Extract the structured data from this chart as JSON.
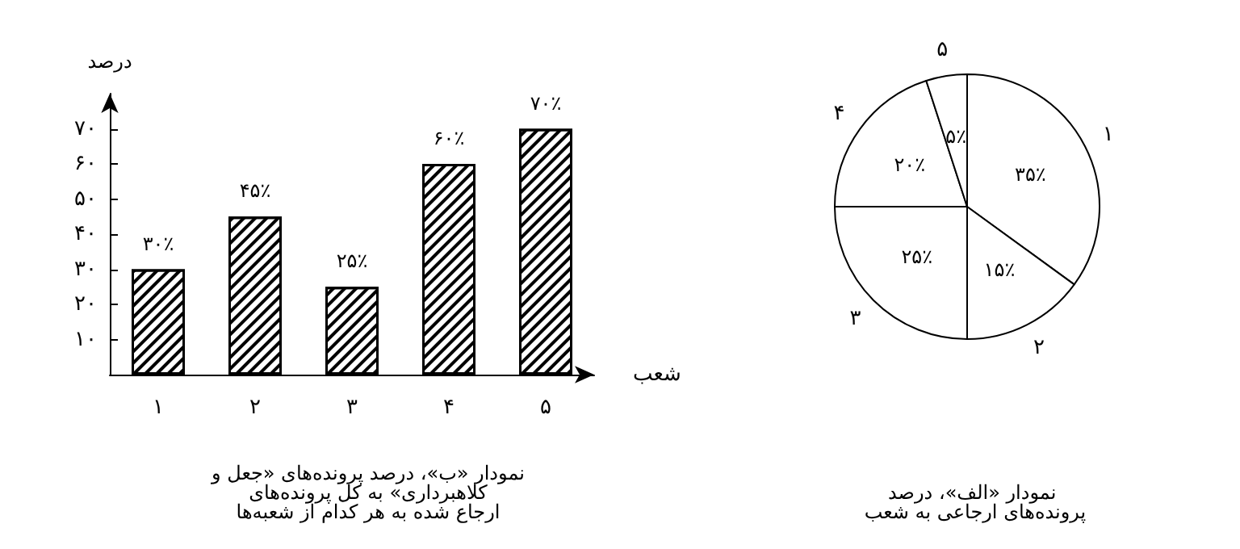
{
  "chart_data": [
    {
      "type": "pie",
      "title": "نمودار «الف»، درصد پرونده‌های ارجاعی به شعب",
      "categories": [
        "۱",
        "۲",
        "۳",
        "۴",
        "۵"
      ],
      "values": [
        35,
        15,
        25,
        20,
        5
      ],
      "colors": [
        "#ffffff",
        "#ffffff",
        "#ffffff",
        "#ffffff",
        "#ffffff"
      ],
      "value_labels": [
        "۳۵٪",
        "۱۵٪",
        "۲۵٪",
        "۲۰٪",
        "۵٪"
      ],
      "legend": false
    },
    {
      "type": "bar",
      "title": "نمودار «ب»، درصد پرونده‌های «جعل و کلاهبرداری» به کل پرونده‌های ارجاع شده به هر کدام از شعبه‌ها",
      "xlabel": "شعب",
      "ylabel": "درصد",
      "categories": [
        "۱",
        "۲",
        "۳",
        "۴",
        "۵"
      ],
      "values": [
        30,
        45,
        25,
        60,
        70
      ],
      "value_labels": [
        "۳۰٪",
        "۴۵٪",
        "۲۵٪",
        "۶۰٪",
        "۷۰٪"
      ],
      "color": "#ffffff",
      "ylim": [
        0,
        80
      ],
      "yticks": [
        {
          "value": 10,
          "label": "۱۰"
        },
        {
          "value": 20,
          "label": "۲۰"
        },
        {
          "value": 30,
          "label": "۳۰"
        },
        {
          "value": 40,
          "label": "۴۰"
        },
        {
          "value": 50,
          "label": "۵۰"
        },
        {
          "value": 60,
          "label": "۶۰"
        },
        {
          "value": 70,
          "label": "۷۰"
        }
      ],
      "grid": false,
      "legend": false
    }
  ]
}
